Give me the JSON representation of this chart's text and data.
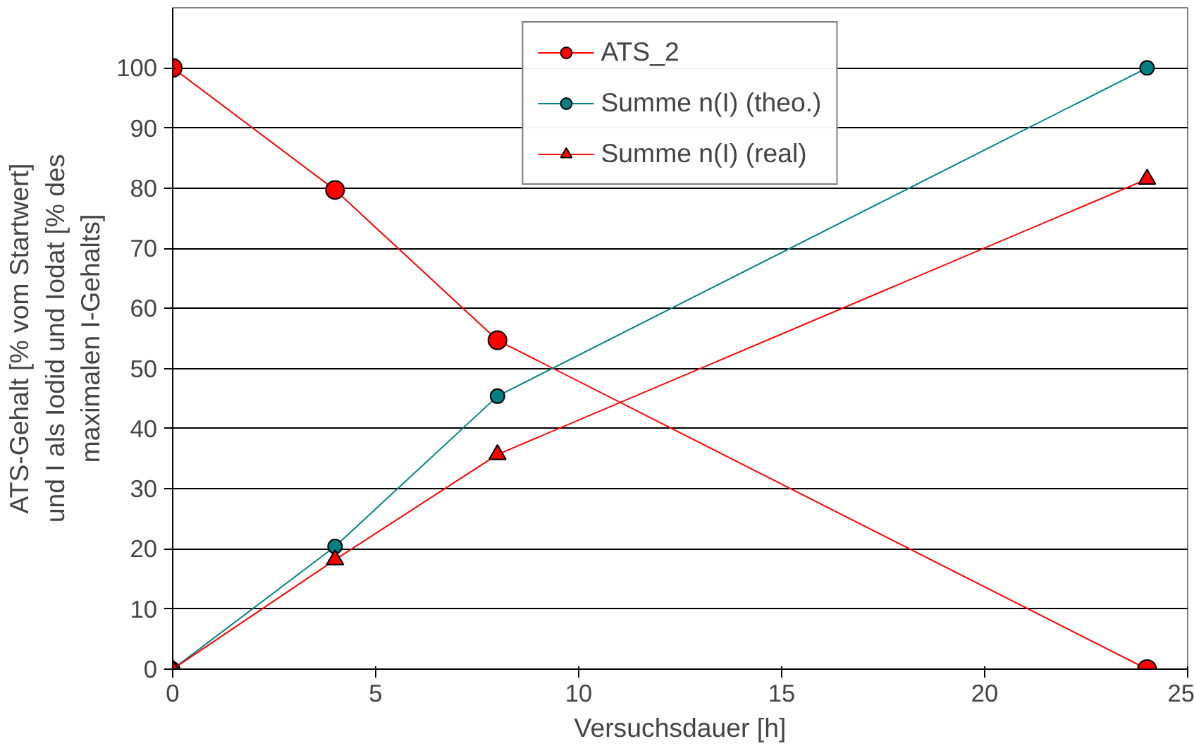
{
  "chart_data": {
    "type": "line",
    "xlabel": "Versuchsdauer [h]",
    "ylabel": "ATS-Gehalt [% vom Startwert]\nund I als Iodid und Iodat [% des\nmaximalen I-Gehalts]",
    "x": [
      0,
      4,
      8,
      24
    ],
    "xlim": [
      0,
      25
    ],
    "xticks": [
      0,
      5,
      10,
      15,
      20,
      25
    ],
    "ylim": [
      0,
      110
    ],
    "yticks": [
      0,
      10,
      20,
      30,
      40,
      50,
      60,
      70,
      80,
      90,
      100
    ],
    "grid": "y",
    "legend": "top",
    "line_style": "solid",
    "series": [
      {
        "name": "ATS_2",
        "color": "#ff0000",
        "marker": "circle",
        "values": [
          100,
          79.7,
          54.7,
          0
        ]
      },
      {
        "name": "Summe n(I) (theo.)",
        "color": "#008080",
        "marker": "circle",
        "values": [
          0,
          20.4,
          45.4,
          100
        ]
      },
      {
        "name": "Summe n(I) (real)",
        "color": "#ff0000",
        "marker": "triangle",
        "values": [
          0,
          18.2,
          35.7,
          81.5
        ]
      }
    ]
  }
}
